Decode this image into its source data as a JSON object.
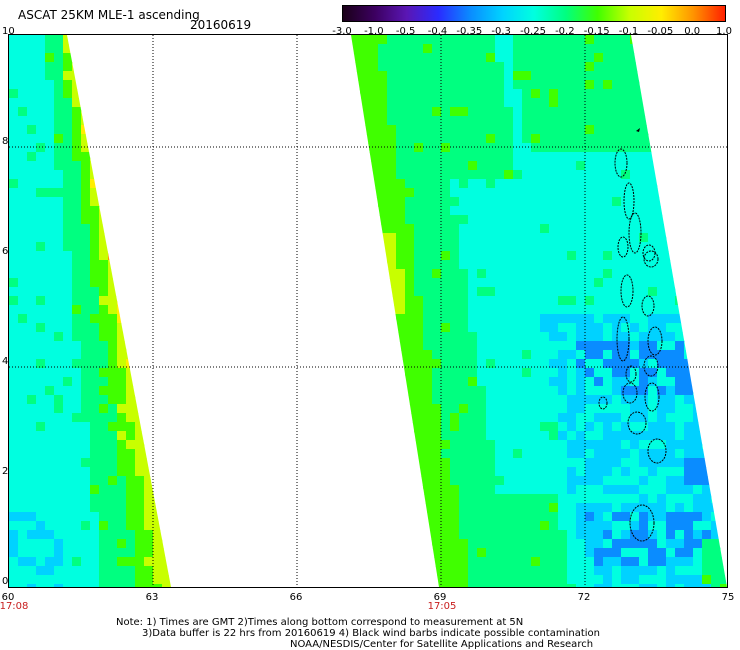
{
  "header": {
    "title": "ASCAT 25KM MLE-1 ascending",
    "date": "20160619"
  },
  "colorbar": {
    "labels": [
      "-3.0",
      "-1.0",
      "-0.5",
      "-0.4",
      "-0.35",
      "-0.3",
      "-0.25",
      "-0.2",
      "-0.15",
      "-0.1",
      "-0.05",
      "0.0",
      "1.0"
    ],
    "colors": [
      "#1a0018",
      "#3c0060",
      "#5a16b4",
      "#2a2cff",
      "#0a8cff",
      "#00d2ff",
      "#00ffe0",
      "#00ff80",
      "#40ff00",
      "#c8ff00",
      "#ffee00",
      "#ff9400",
      "#ff2000"
    ]
  },
  "map": {
    "y_ticks": [
      "0",
      "2",
      "4",
      "6",
      "8",
      "10"
    ],
    "x_ticks": [
      "60",
      "63",
      "66",
      "69",
      "72",
      "75"
    ],
    "swath_times": [
      "17:08",
      "17:05"
    ]
  },
  "notes": {
    "line1": "Note: 1) Times are GMT 2)Times along bottom correspond to measurement at 5N",
    "line2": "3)Data buffer is 22 hrs from 20160619 4) Black wind barbs indicate possible contamination",
    "line3": "NOAA/NESDIS/Center for Satellite Applications and Research"
  }
}
